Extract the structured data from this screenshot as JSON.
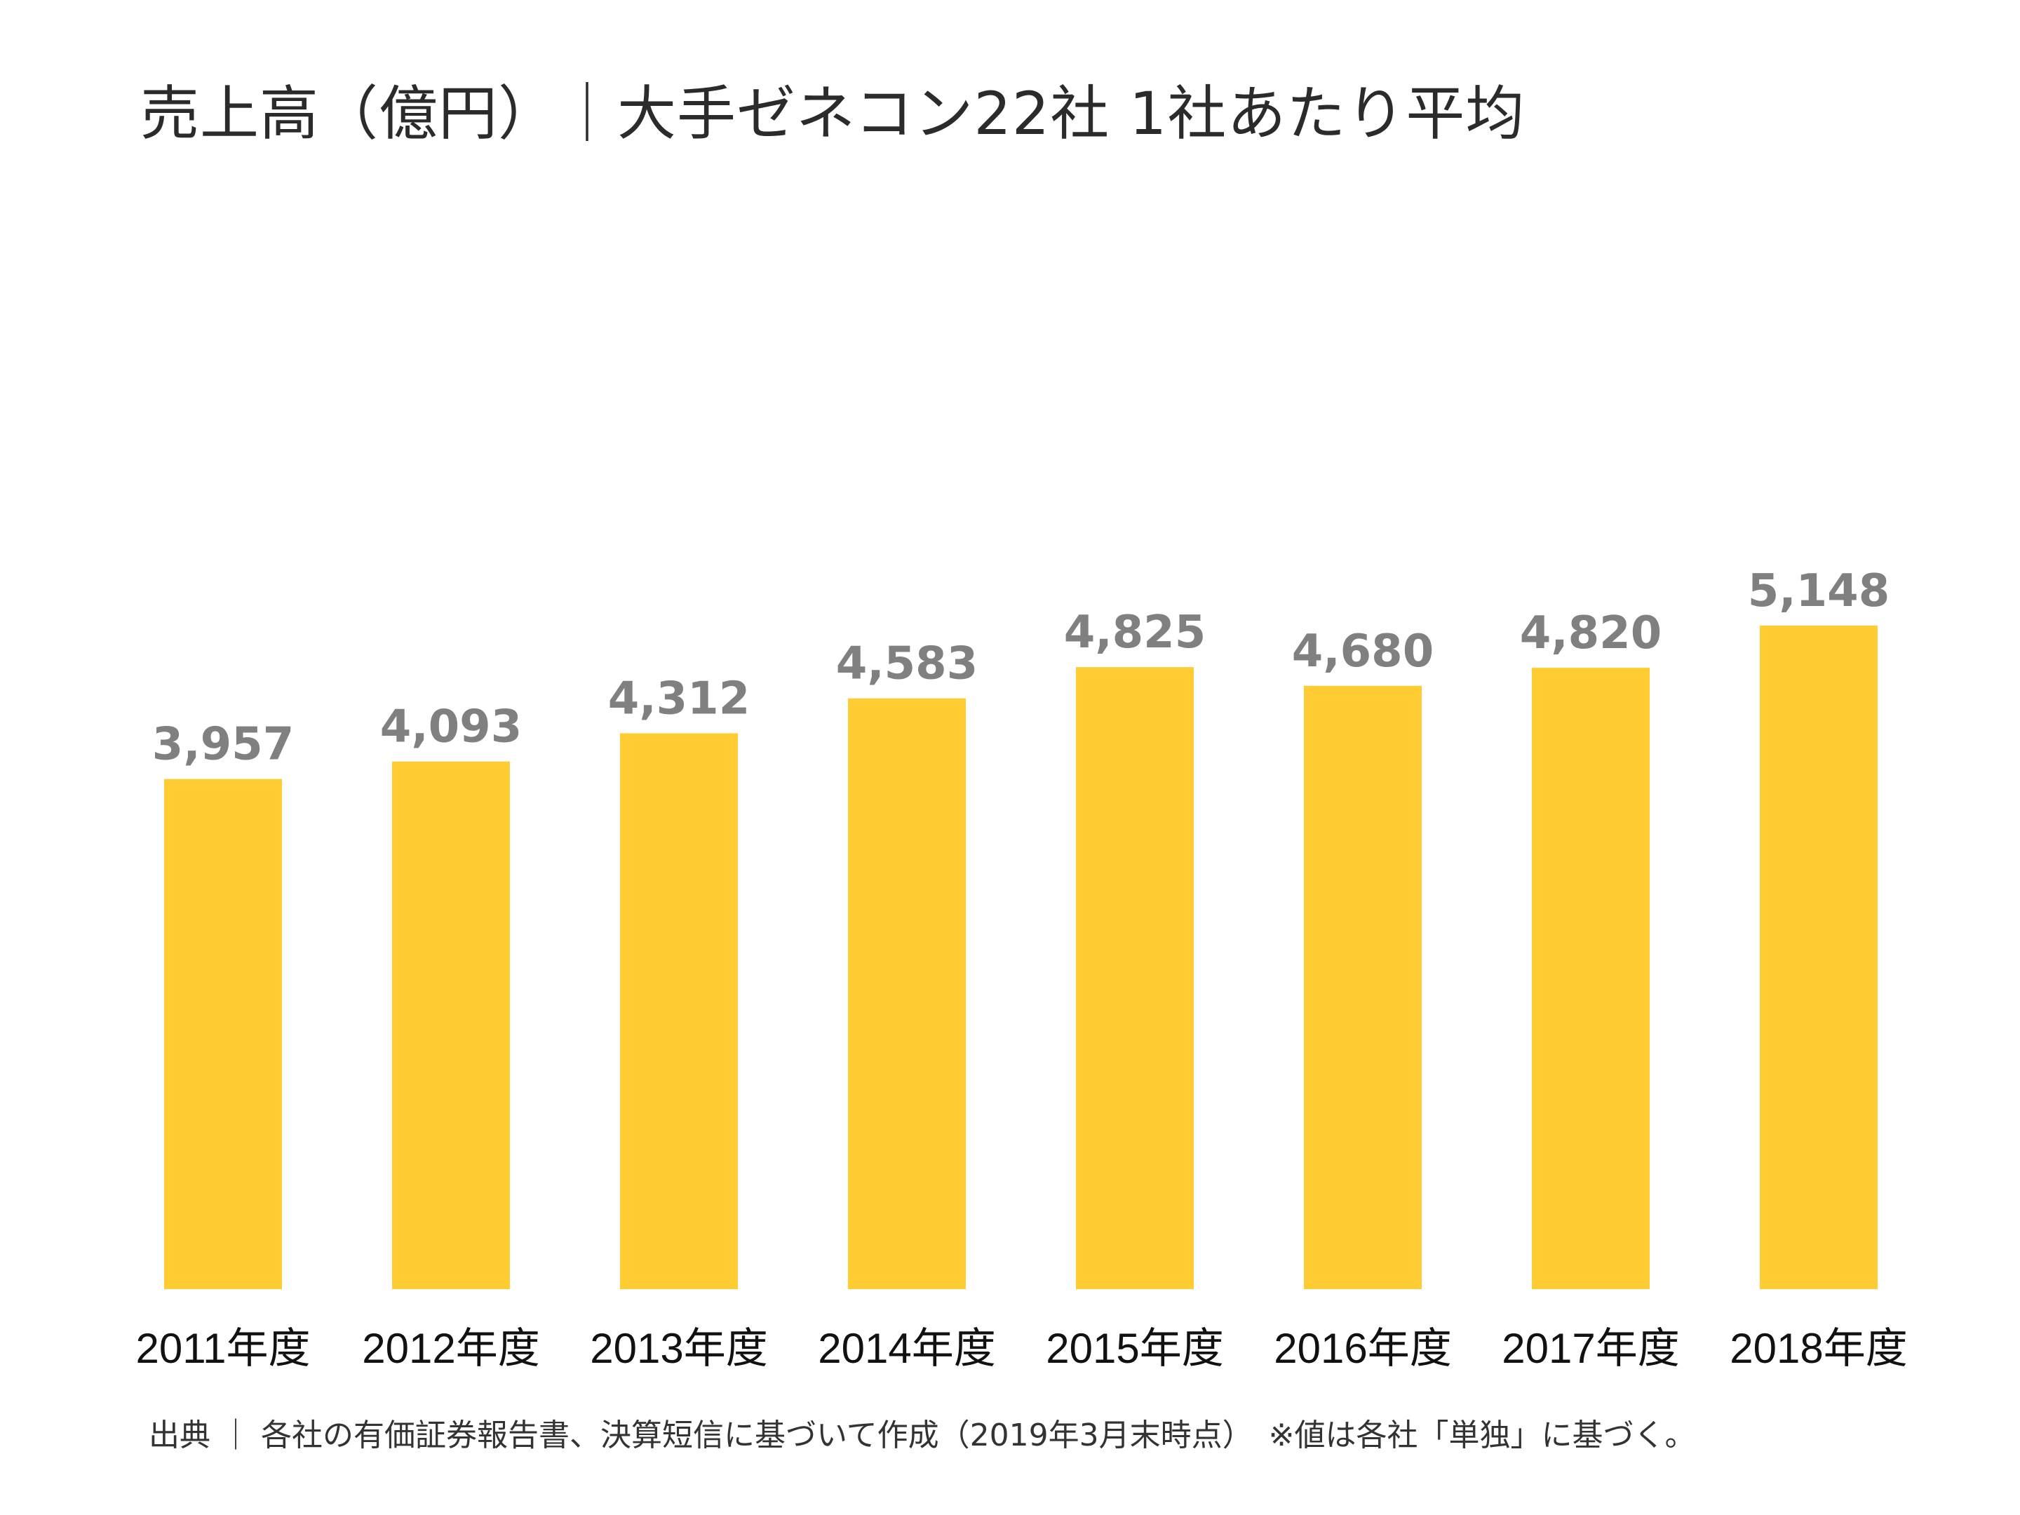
{
  "chart_data": {
    "type": "bar",
    "title": "売上高（億円）｜大手ゼネコン22社 1社あたり平均",
    "categories": [
      "2011年度",
      "2012年度",
      "2013年度",
      "2014年度",
      "2015年度",
      "2016年度",
      "2017年度",
      "2018年度"
    ],
    "values": [
      3957,
      4093,
      4312,
      4583,
      4825,
      4680,
      4820,
      5148
    ],
    "value_labels": [
      "3,957",
      "4,093",
      "4,312",
      "4,583",
      "4,825",
      "4,680",
      "4,820",
      "5,148"
    ],
    "xlabel": "",
    "ylabel": "",
    "ylim": [
      0,
      10000
    ],
    "grid": false,
    "legend": "none",
    "colors": {
      "bar": "#FFCC33",
      "value_label": "#808080",
      "tick_label": "#111111"
    }
  },
  "footer": {
    "source": "出典 ｜ 各社の有価証券報告書、決算短信に基づいて作成（2019年3月末時点）　※値は各社「単独」に基づく。"
  }
}
